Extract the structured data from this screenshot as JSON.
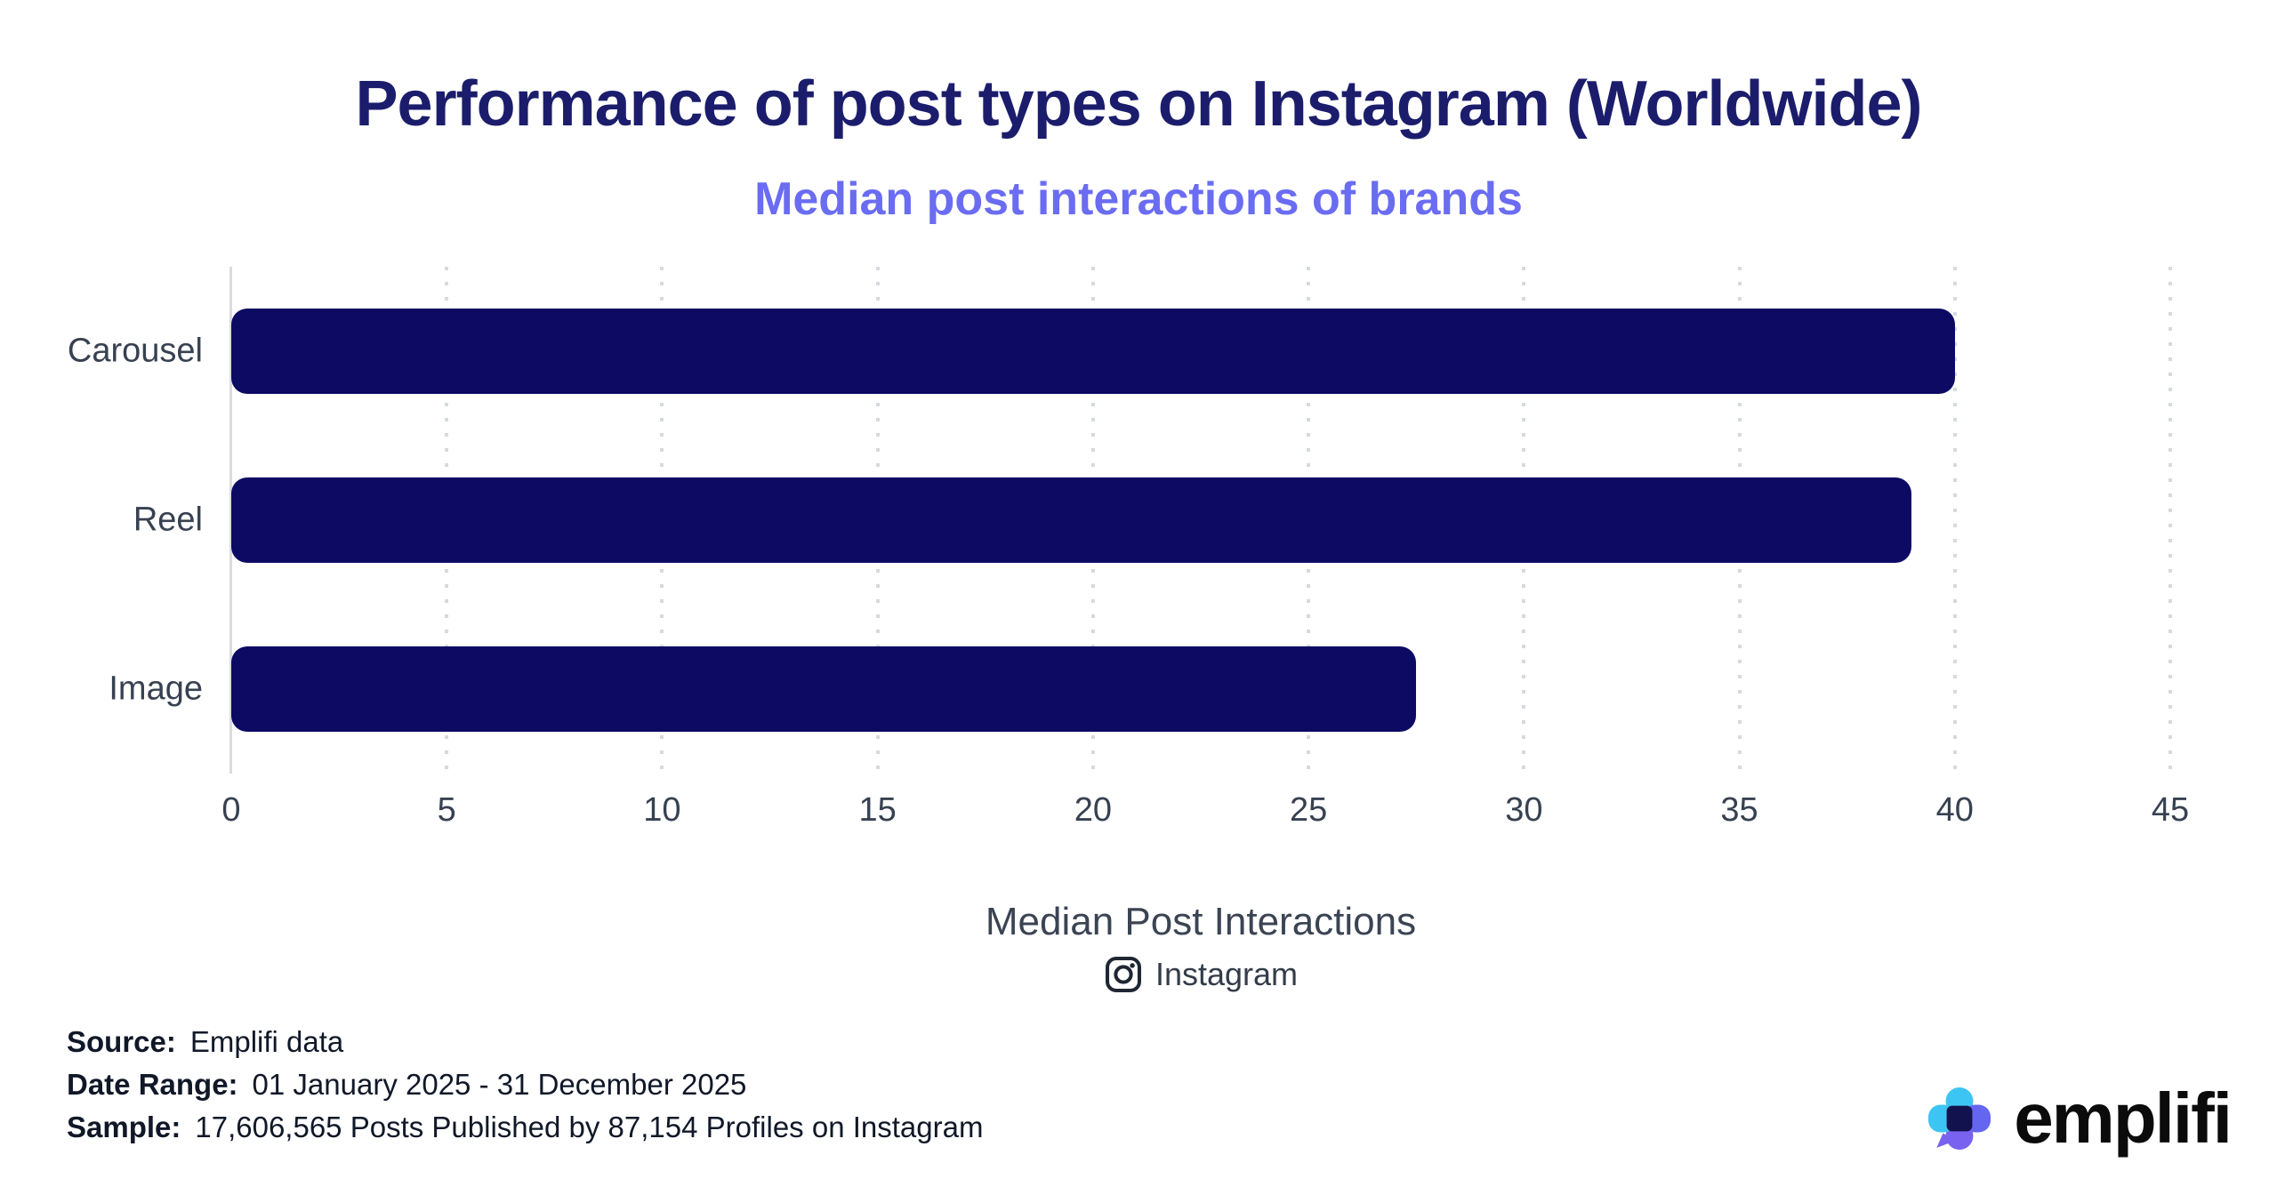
{
  "header": {
    "title": "Performance of post types on Instagram (Worldwide)",
    "subtitle": "Median post interactions of brands"
  },
  "chart_data": {
    "type": "bar",
    "orientation": "horizontal",
    "title": "Performance of post types on Instagram (Worldwide)",
    "subtitle": "Median post interactions of brands",
    "categories": [
      "Carousel",
      "Reel",
      "Image"
    ],
    "values": [
      40,
      39,
      27.5
    ],
    "xlabel": "Median Post Interactions",
    "ylabel": "",
    "xlim": [
      0,
      45
    ],
    "xticks": [
      0,
      5,
      10,
      15,
      20,
      25,
      30,
      35,
      40,
      45
    ],
    "grid": "vertical-dotted",
    "legend": "none"
  },
  "caption": {
    "network_label": "Instagram"
  },
  "source_block": {
    "lines": [
      {
        "label": "Source:",
        "value": "Emplifi data"
      },
      {
        "label": "Date Range:",
        "value": "01 January 2025 - 31 December 2025"
      },
      {
        "label": "Sample:",
        "value": "17,606,565 Posts Published by 87,154 Profiles on Instagram"
      }
    ]
  },
  "brand": {
    "wordmark": "emplifi"
  },
  "colors": {
    "bar": "#0d0a64",
    "title": "#1b1d6c",
    "subtitle": "#6a6cf2",
    "axis_text": "#374151",
    "gridline": "#d6d9de",
    "axis_line": "#d9dbe0",
    "footer_text": "#101828",
    "instagram_icon": "#1f2733",
    "logo_cyan": "#3cc5f2",
    "logo_periwinkle": "#6466ef",
    "logo_violet": "#7a62f0",
    "logo_navy": "#12124f",
    "wordmark": "#0b0b0b"
  }
}
